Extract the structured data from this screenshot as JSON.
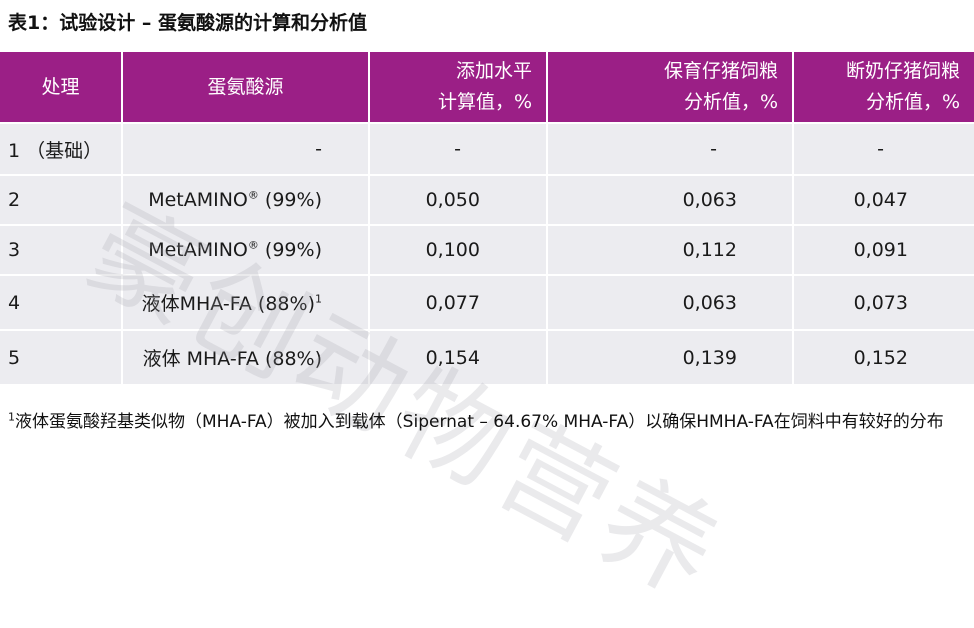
{
  "title": "表1：试验设计 – 蛋氨酸源的计算和分析值",
  "table": {
    "headers": [
      {
        "line1": "处理",
        "line2": ""
      },
      {
        "line1": "蛋氨酸源",
        "line2": ""
      },
      {
        "line1": "添加水平",
        "line2": "计算值，%"
      },
      {
        "line1": "保育仔猪饲粮",
        "line2": "分析值，%"
      },
      {
        "line1": "断奶仔猪饲粮",
        "line2": "分析值，%"
      }
    ],
    "rows": [
      {
        "treatment": "1 （基础）",
        "source": "-",
        "source_sup": "",
        "source_suffix": "",
        "calc": "-",
        "nursery": "-",
        "weaned": "-"
      },
      {
        "treatment": "2",
        "source": "MetAMINO",
        "source_sup": "®",
        "source_suffix": " (99%)",
        "calc": "0,050",
        "nursery": "0,063",
        "weaned": "0,047"
      },
      {
        "treatment": "3",
        "source": "MetAMINO",
        "source_sup": "®",
        "source_suffix": " (99%)",
        "calc": "0,100",
        "nursery": "0,112",
        "weaned": "0,091"
      },
      {
        "treatment": "4",
        "source": "液体MHA-FA (88%)",
        "source_sup": "1",
        "source_suffix": "",
        "calc": "0,077",
        "nursery": "0,063",
        "weaned": "0,073"
      },
      {
        "treatment": "5",
        "source": "液体 MHA-FA (88%)",
        "source_sup": "",
        "source_suffix": "",
        "calc": "0,154",
        "nursery": "0,139",
        "weaned": "0,152"
      }
    ]
  },
  "footnote": {
    "marker": "1",
    "text": "液体蛋氨酸羟基类似物（MHA-FA）被加入到载体（Sipernat – 64.67% MHA-FA）以确保HMHA-FA在饲料中有较好的分布"
  },
  "watermark": "豪创动物营养",
  "colors": {
    "header_bg": "#9b1f86",
    "row_bg": "#ececf0",
    "header_text": "#ffffff"
  }
}
